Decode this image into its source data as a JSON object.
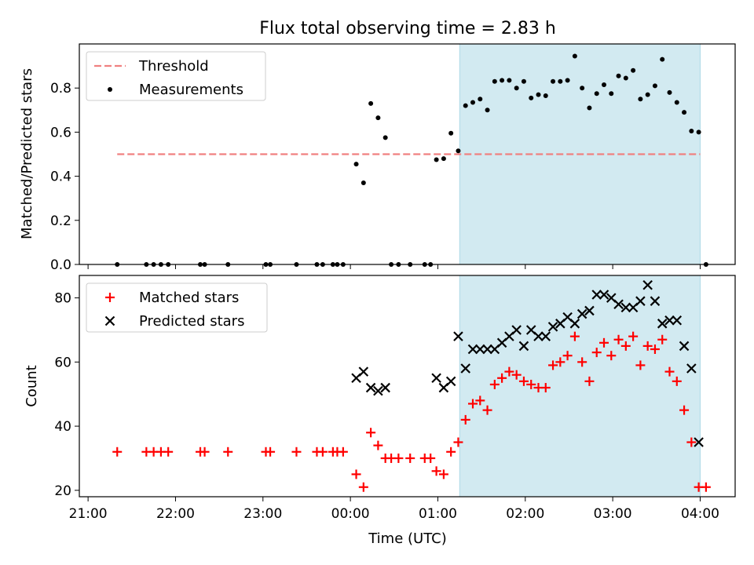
{
  "title": "Flux total observing time = 2.83 h",
  "colors": {
    "threshold": "#f08080",
    "measurements": "#000000",
    "matched": "#ff0000",
    "predicted": "#000000",
    "span_fill": "#add8e6"
  },
  "chart_data": [
    {
      "type": "scatter",
      "ylabel": "Matched/Predicted stars",
      "ylim": [
        0,
        1.0
      ],
      "yticks": [
        "0.0",
        "0.2",
        "0.4",
        "0.6",
        "0.8"
      ],
      "xlim_hours": [
        20.9,
        28.4
      ],
      "x_axis": "time (UTC)",
      "highlight_span": [
        "01:15",
        "04:00"
      ],
      "legend": {
        "position": "top-left",
        "entries": [
          "Threshold",
          "Measurements"
        ]
      },
      "series": [
        {
          "name": "Threshold",
          "style": "dashed-line",
          "points": [
            [
              "21:20",
              0.5
            ],
            [
              "04:00",
              0.5
            ]
          ]
        },
        {
          "name": "Measurements",
          "style": "dot",
          "points": [
            [
              "21:20",
              0.0
            ],
            [
              "21:40",
              0.0
            ],
            [
              "21:45",
              0.0
            ],
            [
              "21:50",
              0.0
            ],
            [
              "21:55",
              0.0
            ],
            [
              "22:17",
              0.0
            ],
            [
              "22:20",
              0.0
            ],
            [
              "22:36",
              0.0
            ],
            [
              "23:02",
              0.0
            ],
            [
              "23:05",
              0.0
            ],
            [
              "23:23",
              0.0
            ],
            [
              "23:37",
              0.0
            ],
            [
              "23:41",
              0.0
            ],
            [
              "23:48",
              0.0
            ],
            [
              "23:51",
              0.0
            ],
            [
              "23:55",
              0.0
            ],
            [
              "00:04",
              0.455
            ],
            [
              "00:09",
              0.37
            ],
            [
              "00:14",
              0.73
            ],
            [
              "00:19",
              0.665
            ],
            [
              "00:24",
              0.575
            ],
            [
              "00:28",
              0.0
            ],
            [
              "00:33",
              0.0
            ],
            [
              "00:41",
              0.0
            ],
            [
              "00:51",
              0.0
            ],
            [
              "00:55",
              0.0
            ],
            [
              "00:59",
              0.475
            ],
            [
              "01:04",
              0.48
            ],
            [
              "01:09",
              0.595
            ],
            [
              "01:14",
              0.515
            ],
            [
              "01:19",
              0.72
            ],
            [
              "01:24",
              0.735
            ],
            [
              "01:29",
              0.75
            ],
            [
              "01:34",
              0.7
            ],
            [
              "01:39",
              0.83
            ],
            [
              "01:44",
              0.835
            ],
            [
              "01:49",
              0.835
            ],
            [
              "01:54",
              0.8
            ],
            [
              "01:59",
              0.83
            ],
            [
              "02:04",
              0.755
            ],
            [
              "02:09",
              0.77
            ],
            [
              "02:14",
              0.765
            ],
            [
              "02:19",
              0.83
            ],
            [
              "02:24",
              0.83
            ],
            [
              "02:29",
              0.835
            ],
            [
              "02:34",
              0.945
            ],
            [
              "02:39",
              0.8
            ],
            [
              "02:44",
              0.71
            ],
            [
              "02:49",
              0.775
            ],
            [
              "02:54",
              0.815
            ],
            [
              "02:59",
              0.775
            ],
            [
              "03:04",
              0.855
            ],
            [
              "03:09",
              0.845
            ],
            [
              "03:14",
              0.88
            ],
            [
              "03:19",
              0.75
            ],
            [
              "03:24",
              0.77
            ],
            [
              "03:29",
              0.81
            ],
            [
              "03:34",
              0.93
            ],
            [
              "03:39",
              0.78
            ],
            [
              "03:44",
              0.735
            ],
            [
              "03:49",
              0.69
            ],
            [
              "03:54",
              0.605
            ],
            [
              "03:59",
              0.6
            ],
            [
              "04:04",
              0.0
            ]
          ]
        }
      ]
    },
    {
      "type": "scatter",
      "xlabel": "Time (UTC)",
      "ylabel": "Count",
      "ylim": [
        18,
        87
      ],
      "yticks": [
        "20",
        "40",
        "60",
        "80"
      ],
      "xticks": [
        "21:00",
        "22:00",
        "23:00",
        "00:00",
        "01:00",
        "02:00",
        "03:00",
        "04:00"
      ],
      "xlim_hours": [
        20.9,
        28.4
      ],
      "highlight_span": [
        "01:15",
        "04:00"
      ],
      "legend": {
        "position": "top-left",
        "entries": [
          "Matched stars",
          "Predicted stars"
        ]
      },
      "series": [
        {
          "name": "Matched stars",
          "style": "plus",
          "points": [
            [
              "21:20",
              32
            ],
            [
              "21:40",
              32
            ],
            [
              "21:45",
              32
            ],
            [
              "21:50",
              32
            ],
            [
              "21:55",
              32
            ],
            [
              "22:17",
              32
            ],
            [
              "22:20",
              32
            ],
            [
              "22:36",
              32
            ],
            [
              "23:02",
              32
            ],
            [
              "23:05",
              32
            ],
            [
              "23:23",
              32
            ],
            [
              "23:37",
              32
            ],
            [
              "23:41",
              32
            ],
            [
              "23:48",
              32
            ],
            [
              "23:51",
              32
            ],
            [
              "23:55",
              32
            ],
            [
              "00:04",
              25
            ],
            [
              "00:09",
              21
            ],
            [
              "00:14",
              38
            ],
            [
              "00:19",
              34
            ],
            [
              "00:24",
              30
            ],
            [
              "00:28",
              30
            ],
            [
              "00:33",
              30
            ],
            [
              "00:41",
              30
            ],
            [
              "00:51",
              30
            ],
            [
              "00:55",
              30
            ],
            [
              "00:59",
              26
            ],
            [
              "01:04",
              25
            ],
            [
              "01:09",
              32
            ],
            [
              "01:14",
              35
            ],
            [
              "01:19",
              42
            ],
            [
              "01:24",
              47
            ],
            [
              "01:29",
              48
            ],
            [
              "01:34",
              45
            ],
            [
              "01:39",
              53
            ],
            [
              "01:44",
              55
            ],
            [
              "01:49",
              57
            ],
            [
              "01:54",
              56
            ],
            [
              "01:59",
              54
            ],
            [
              "02:04",
              53
            ],
            [
              "02:09",
              52
            ],
            [
              "02:14",
              52
            ],
            [
              "02:19",
              59
            ],
            [
              "02:24",
              60
            ],
            [
              "02:29",
              62
            ],
            [
              "02:34",
              68
            ],
            [
              "02:39",
              60
            ],
            [
              "02:44",
              54
            ],
            [
              "02:49",
              63
            ],
            [
              "02:54",
              66
            ],
            [
              "02:59",
              62
            ],
            [
              "03:04",
              67
            ],
            [
              "03:09",
              65
            ],
            [
              "03:14",
              68
            ],
            [
              "03:19",
              59
            ],
            [
              "03:24",
              65
            ],
            [
              "03:29",
              64
            ],
            [
              "03:34",
              67
            ],
            [
              "03:39",
              57
            ],
            [
              "03:44",
              54
            ],
            [
              "03:49",
              45
            ],
            [
              "03:54",
              35
            ],
            [
              "03:59",
              21
            ],
            [
              "04:04",
              21
            ]
          ]
        },
        {
          "name": "Predicted stars",
          "style": "x",
          "points": [
            [
              "00:04",
              55
            ],
            [
              "00:09",
              57
            ],
            [
              "00:14",
              52
            ],
            [
              "00:19",
              51
            ],
            [
              "00:24",
              52
            ],
            [
              "00:59",
              55
            ],
            [
              "01:04",
              52
            ],
            [
              "01:09",
              54
            ],
            [
              "01:14",
              68
            ],
            [
              "01:19",
              58
            ],
            [
              "01:24",
              64
            ],
            [
              "01:29",
              64
            ],
            [
              "01:34",
              64
            ],
            [
              "01:39",
              64
            ],
            [
              "01:44",
              66
            ],
            [
              "01:49",
              68
            ],
            [
              "01:54",
              70
            ],
            [
              "01:59",
              65
            ],
            [
              "02:04",
              70
            ],
            [
              "02:09",
              68
            ],
            [
              "02:14",
              68
            ],
            [
              "02:19",
              71
            ],
            [
              "02:24",
              72
            ],
            [
              "02:29",
              74
            ],
            [
              "02:34",
              72
            ],
            [
              "02:39",
              75
            ],
            [
              "02:44",
              76
            ],
            [
              "02:49",
              81
            ],
            [
              "02:54",
              81
            ],
            [
              "02:59",
              80
            ],
            [
              "03:04",
              78
            ],
            [
              "03:09",
              77
            ],
            [
              "03:14",
              77
            ],
            [
              "03:19",
              79
            ],
            [
              "03:24",
              84
            ],
            [
              "03:29",
              79
            ],
            [
              "03:34",
              72
            ],
            [
              "03:39",
              73
            ],
            [
              "03:44",
              73
            ],
            [
              "03:49",
              65
            ],
            [
              "03:54",
              58
            ],
            [
              "03:59",
              35
            ]
          ]
        }
      ]
    }
  ]
}
